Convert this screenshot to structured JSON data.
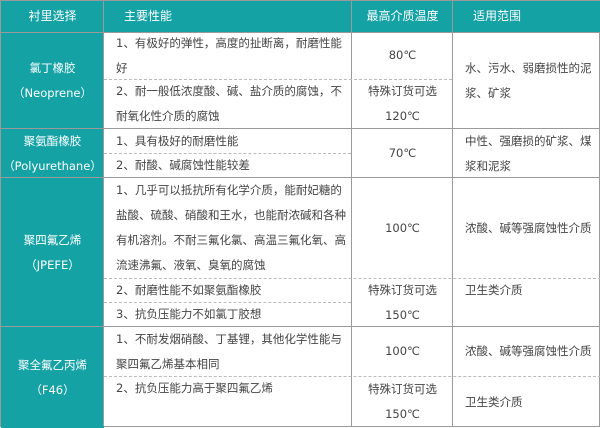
{
  "header": [
    "衬里选择",
    "主要性能",
    "最高介质温度",
    "适用范围"
  ],
  "rows": [
    {
      "name": [
        "氯丁橡胶",
        "（Neoprene）"
      ],
      "props": [
        "1、有极好的弹性，高度的扯断离，耐磨性能好",
        "2、耐一般低浓度酸、碱、盐介质的腐蚀，不耐氧化性介质的腐蚀"
      ],
      "temp": [
        "80℃",
        "特殊订货可选",
        "120℃"
      ],
      "scope": [
        "水、污水、弱磨损性的泥浆、矿浆"
      ]
    },
    {
      "name": [
        "聚氨酯橡胶",
        "（Polyurethane）"
      ],
      "props": [
        "1、具有极好的耐磨性能",
        "2、耐酸、碱腐蚀性能较差"
      ],
      "temp": [
        "70℃"
      ],
      "scope": [
        "中性、强磨损的矿浆、煤浆和泥浆"
      ]
    },
    {
      "name": [
        "聚四氟乙烯",
        "（JPEFE）"
      ],
      "props": [
        "1、几乎可以抵抗所有化学介质，能耐妃糖的盐酸、硫酸、硝酸和王水，也能耐浓碱和各种有机溶剂。不耐三氟化氯、高温三氟化氧、高流速沸氟、液氧、臭氧的腐蚀",
        "2、耐磨性能不如聚氨酯橡胶",
        "3、抗负压能力不如氯丁胶想"
      ],
      "temp": [
        "100℃",
        "特殊订货可选",
        "150℃"
      ],
      "scope": [
        "浓酸、碱等强腐蚀性介质",
        "卫生类介质"
      ]
    },
    {
      "name": [
        "聚全氟乙丙烯",
        "（F46）"
      ],
      "props": [
        "1、不耐发烟硝酸、丁基锂，其他化学性能与聚四氟乙烯基本相同",
        "2、抗负压能力高于聚四氟乙烯"
      ],
      "temp": [
        "100℃",
        "特殊订货可选",
        "150℃"
      ],
      "scope": [
        "浓酸、碱等强腐蚀性介质",
        "卫生类介质"
      ]
    }
  ],
  "colors": {
    "accent": "#14a2a5"
  }
}
